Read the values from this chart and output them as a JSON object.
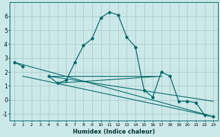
{
  "xlabel": "Humidex (Indice chaleur)",
  "background_color": "#cce8e8",
  "grid_color": "#aacccc",
  "line_color": "#006868",
  "x_values": [
    0,
    1,
    2,
    3,
    4,
    5,
    6,
    7,
    8,
    9,
    10,
    11,
    12,
    13,
    14,
    15,
    16,
    17,
    18,
    19,
    20,
    21,
    22,
    23
  ],
  "y_main": [
    2.7,
    2.4,
    null,
    null,
    1.7,
    1.2,
    1.4,
    2.7,
    3.9,
    4.4,
    5.9,
    6.3,
    6.1,
    4.5,
    3.8,
    0.7,
    0.2,
    2.0,
    1.7,
    -0.1,
    -0.1,
    -0.2,
    -1.1,
    -1.2
  ],
  "trend_lines": [
    {
      "x": [
        0,
        23
      ],
      "y": [
        2.7,
        -1.2
      ]
    },
    {
      "x": [
        1,
        23
      ],
      "y": [
        1.7,
        -1.2
      ]
    },
    {
      "x": [
        4,
        17
      ],
      "y": [
        1.7,
        1.7
      ]
    },
    {
      "x": [
        5,
        17
      ],
      "y": [
        1.2,
        1.7
      ]
    },
    {
      "x": [
        4,
        23
      ],
      "y": [
        1.7,
        -0.1
      ]
    }
  ],
  "ylim": [
    -1.5,
    7.0
  ],
  "xlim": [
    -0.5,
    23.5
  ],
  "yticks": [
    -1,
    0,
    1,
    2,
    3,
    4,
    5,
    6
  ],
  "xticks": [
    0,
    1,
    2,
    3,
    4,
    5,
    6,
    7,
    8,
    9,
    10,
    11,
    12,
    13,
    14,
    15,
    16,
    17,
    18,
    19,
    20,
    21,
    22,
    23
  ]
}
